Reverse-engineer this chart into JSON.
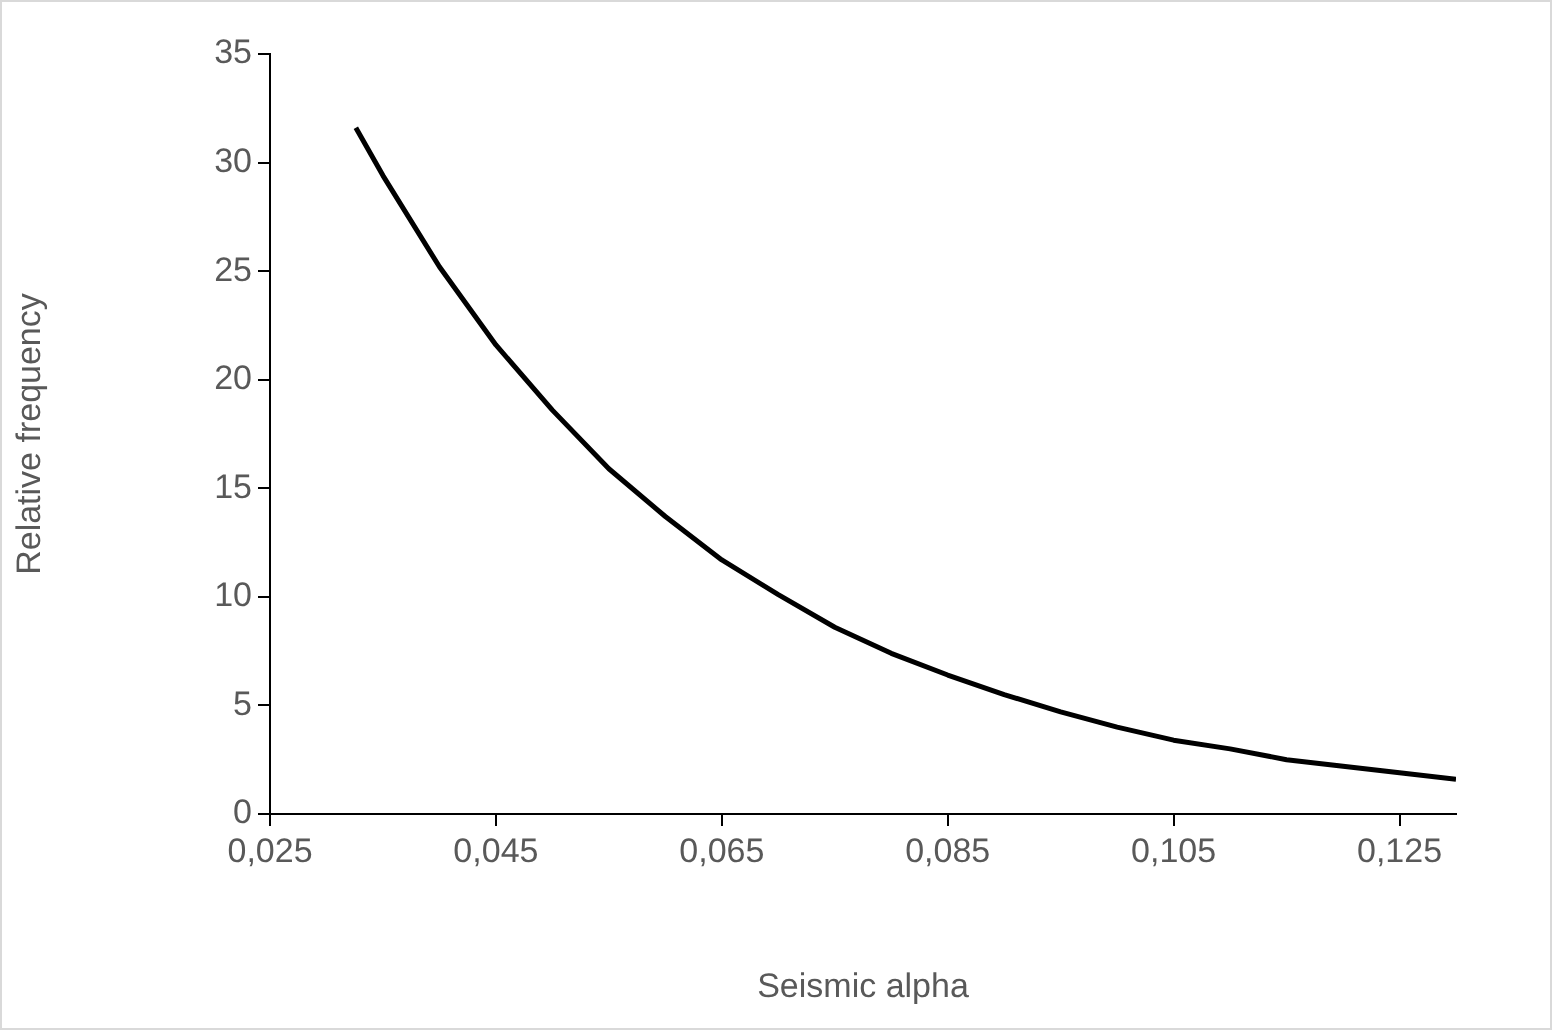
{
  "chart_data": {
    "type": "line",
    "xlabel": "Seismic alpha",
    "ylabel": "Relative frequency",
    "x": [
      0.0326,
      0.035,
      0.04,
      0.045,
      0.05,
      0.055,
      0.06,
      0.065,
      0.07,
      0.075,
      0.08,
      0.085,
      0.09,
      0.095,
      0.1,
      0.105,
      0.11,
      0.115,
      0.12,
      0.125,
      0.13
    ],
    "series": [
      {
        "color": "#000000",
        "values": [
          31.6,
          29.4,
          25.2,
          21.6,
          18.6,
          15.9,
          13.7,
          11.7,
          10.1,
          8.6,
          7.4,
          6.4,
          5.5,
          4.7,
          4.0,
          3.4,
          3.0,
          2.5,
          2.2,
          1.9,
          1.6
        ]
      }
    ],
    "xlim": [
      0.025,
      0.13
    ],
    "xticks": [
      {
        "value": 0.025,
        "label": "0,025"
      },
      {
        "value": 0.045,
        "label": "0,045"
      },
      {
        "value": 0.065,
        "label": "0,065"
      },
      {
        "value": 0.085,
        "label": "0,085"
      },
      {
        "value": 0.105,
        "label": "0,105"
      },
      {
        "value": 0.125,
        "label": "0,125"
      }
    ],
    "ylim": [
      0,
      35
    ],
    "yticks": [
      0,
      5,
      10,
      15,
      20,
      25,
      30,
      35
    ],
    "grid": false,
    "legend": false,
    "marker": "none",
    "line_style": "solid"
  }
}
